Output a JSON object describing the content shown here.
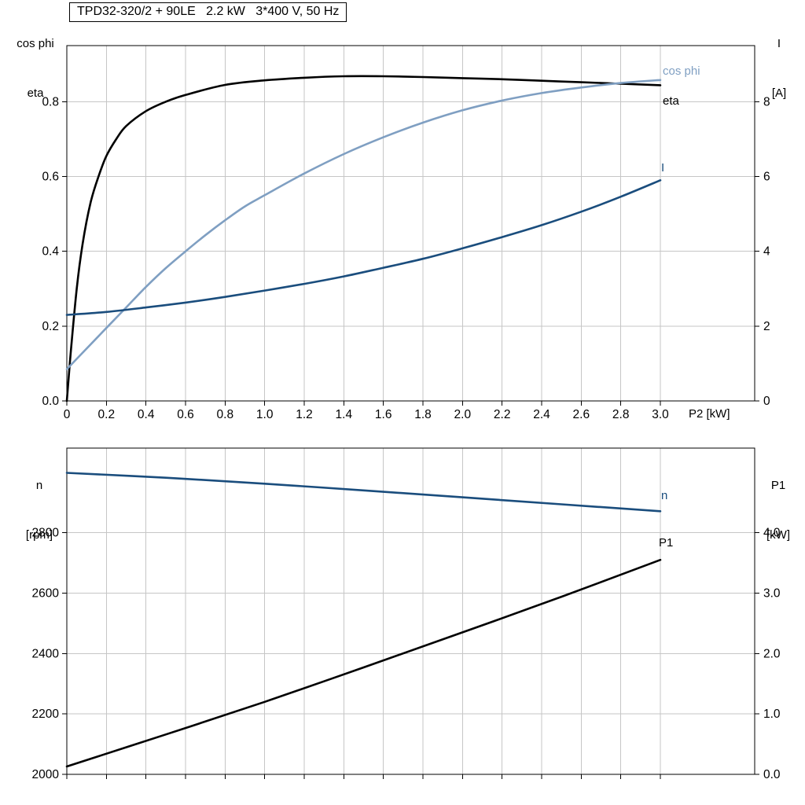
{
  "style": {
    "grid_color": "#c6c6c6",
    "frame_color": "#000000",
    "background": "#ffffff",
    "curve_black": "#000000",
    "curve_light_blue": "#7f9fc2",
    "curve_dark_blue": "#1a4d7d"
  },
  "chart_data": [
    {
      "type": "line",
      "title": "TPD32-320/2 + 90LE   2.2 kW   3*400 V, 50 Hz",
      "x_axis": {
        "label": "P2 [kW]",
        "min": 0,
        "max": 3.0,
        "ticks": [
          0,
          0.2,
          0.4,
          0.6,
          0.8,
          1.0,
          1.2,
          1.4,
          1.6,
          1.8,
          2.0,
          2.2,
          2.4,
          2.6,
          2.8,
          3.0
        ],
        "tick_labels": [
          "0",
          "0.2",
          "0.4",
          "0.6",
          "0.8",
          "1.0",
          "1.2",
          "1.4",
          "1.6",
          "1.8",
          "2.0",
          "2.2",
          "2.4",
          "2.6",
          "2.8",
          "3.0"
        ],
        "show_labels": true
      },
      "y_left": {
        "title_lines": [
          "cos phi",
          "eta"
        ],
        "min": 0,
        "max": 0.95,
        "ticks": [
          0,
          0.2,
          0.4,
          0.6,
          0.8
        ],
        "tick_labels": [
          "0.0",
          "0.2",
          "0.4",
          "0.6",
          "0.8"
        ]
      },
      "y_right": {
        "title_lines": [
          "I",
          "[A]"
        ],
        "min": 0,
        "max": 9.5,
        "ticks": [
          0,
          2,
          4,
          6,
          8
        ],
        "tick_labels": [
          "0",
          "2",
          "4",
          "6",
          "8"
        ]
      },
      "series": [
        {
          "name": "eta",
          "axis": "left",
          "color": "#000000",
          "x": [
            0,
            0.02,
            0.05,
            0.08,
            0.12,
            0.16,
            0.2,
            0.25,
            0.3,
            0.4,
            0.5,
            0.6,
            0.8,
            1.0,
            1.2,
            1.4,
            1.6,
            1.8,
            2.0,
            2.2,
            2.4,
            2.6,
            2.8,
            3.0
          ],
          "y": [
            0,
            0.13,
            0.3,
            0.42,
            0.53,
            0.6,
            0.655,
            0.7,
            0.735,
            0.775,
            0.8,
            0.818,
            0.845,
            0.857,
            0.864,
            0.868,
            0.868,
            0.866,
            0.863,
            0.86,
            0.856,
            0.852,
            0.848,
            0.844
          ]
        },
        {
          "name": "cos phi",
          "axis": "left",
          "color": "#7f9fc2",
          "x": [
            0,
            0.1,
            0.2,
            0.3,
            0.4,
            0.5,
            0.6,
            0.7,
            0.8,
            0.9,
            1.0,
            1.2,
            1.4,
            1.6,
            1.8,
            2.0,
            2.2,
            2.4,
            2.6,
            2.8,
            3.0
          ],
          "y": [
            0.085,
            0.14,
            0.195,
            0.25,
            0.305,
            0.355,
            0.4,
            0.443,
            0.483,
            0.52,
            0.55,
            0.608,
            0.66,
            0.705,
            0.744,
            0.777,
            0.803,
            0.823,
            0.838,
            0.85,
            0.858
          ]
        },
        {
          "name": "I",
          "axis": "right",
          "color": "#1a4d7d",
          "x": [
            0,
            0.2,
            0.4,
            0.6,
            0.8,
            1.0,
            1.2,
            1.4,
            1.6,
            1.8,
            2.0,
            2.2,
            2.4,
            2.6,
            2.8,
            3.0
          ],
          "y": [
            2.3,
            2.38,
            2.5,
            2.63,
            2.78,
            2.95,
            3.13,
            3.33,
            3.56,
            3.8,
            4.08,
            4.38,
            4.7,
            5.06,
            5.46,
            5.9
          ]
        }
      ]
    },
    {
      "type": "line",
      "x_axis": {
        "label": "",
        "min": 0,
        "max": 3.0,
        "ticks": [
          0,
          0.2,
          0.4,
          0.6,
          0.8,
          1.0,
          1.2,
          1.4,
          1.6,
          1.8,
          2.0,
          2.2,
          2.4,
          2.6,
          2.8,
          3.0
        ],
        "tick_labels": [],
        "show_labels": false
      },
      "y_left": {
        "title_lines": [
          "n",
          "[rpm]"
        ],
        "min": 2000,
        "max": 3080,
        "ticks": [
          2000,
          2200,
          2400,
          2600,
          2800
        ],
        "tick_labels": [
          "2000",
          "2200",
          "2400",
          "2600",
          "2800"
        ]
      },
      "y_right": {
        "title_lines": [
          "P1",
          "[kW]"
        ],
        "min": 0,
        "max": 5.4,
        "ticks": [
          0,
          1,
          2,
          3,
          4
        ],
        "tick_labels": [
          "0.0",
          "1.0",
          "2.0",
          "3.0",
          "4.0"
        ]
      },
      "series": [
        {
          "name": "n",
          "axis": "left",
          "color": "#1a4d7d",
          "x": [
            0,
            0.5,
            1.0,
            1.5,
            2.0,
            2.5,
            3.0
          ],
          "y": [
            2998,
            2982,
            2962,
            2940,
            2917,
            2894,
            2871
          ]
        },
        {
          "name": "P1",
          "axis": "right",
          "color": "#000000",
          "x": [
            0,
            0.5,
            1.0,
            1.5,
            2.0,
            2.5,
            3.0
          ],
          "y": [
            0.13,
            0.66,
            1.2,
            1.77,
            2.35,
            2.94,
            3.55
          ]
        }
      ]
    }
  ]
}
